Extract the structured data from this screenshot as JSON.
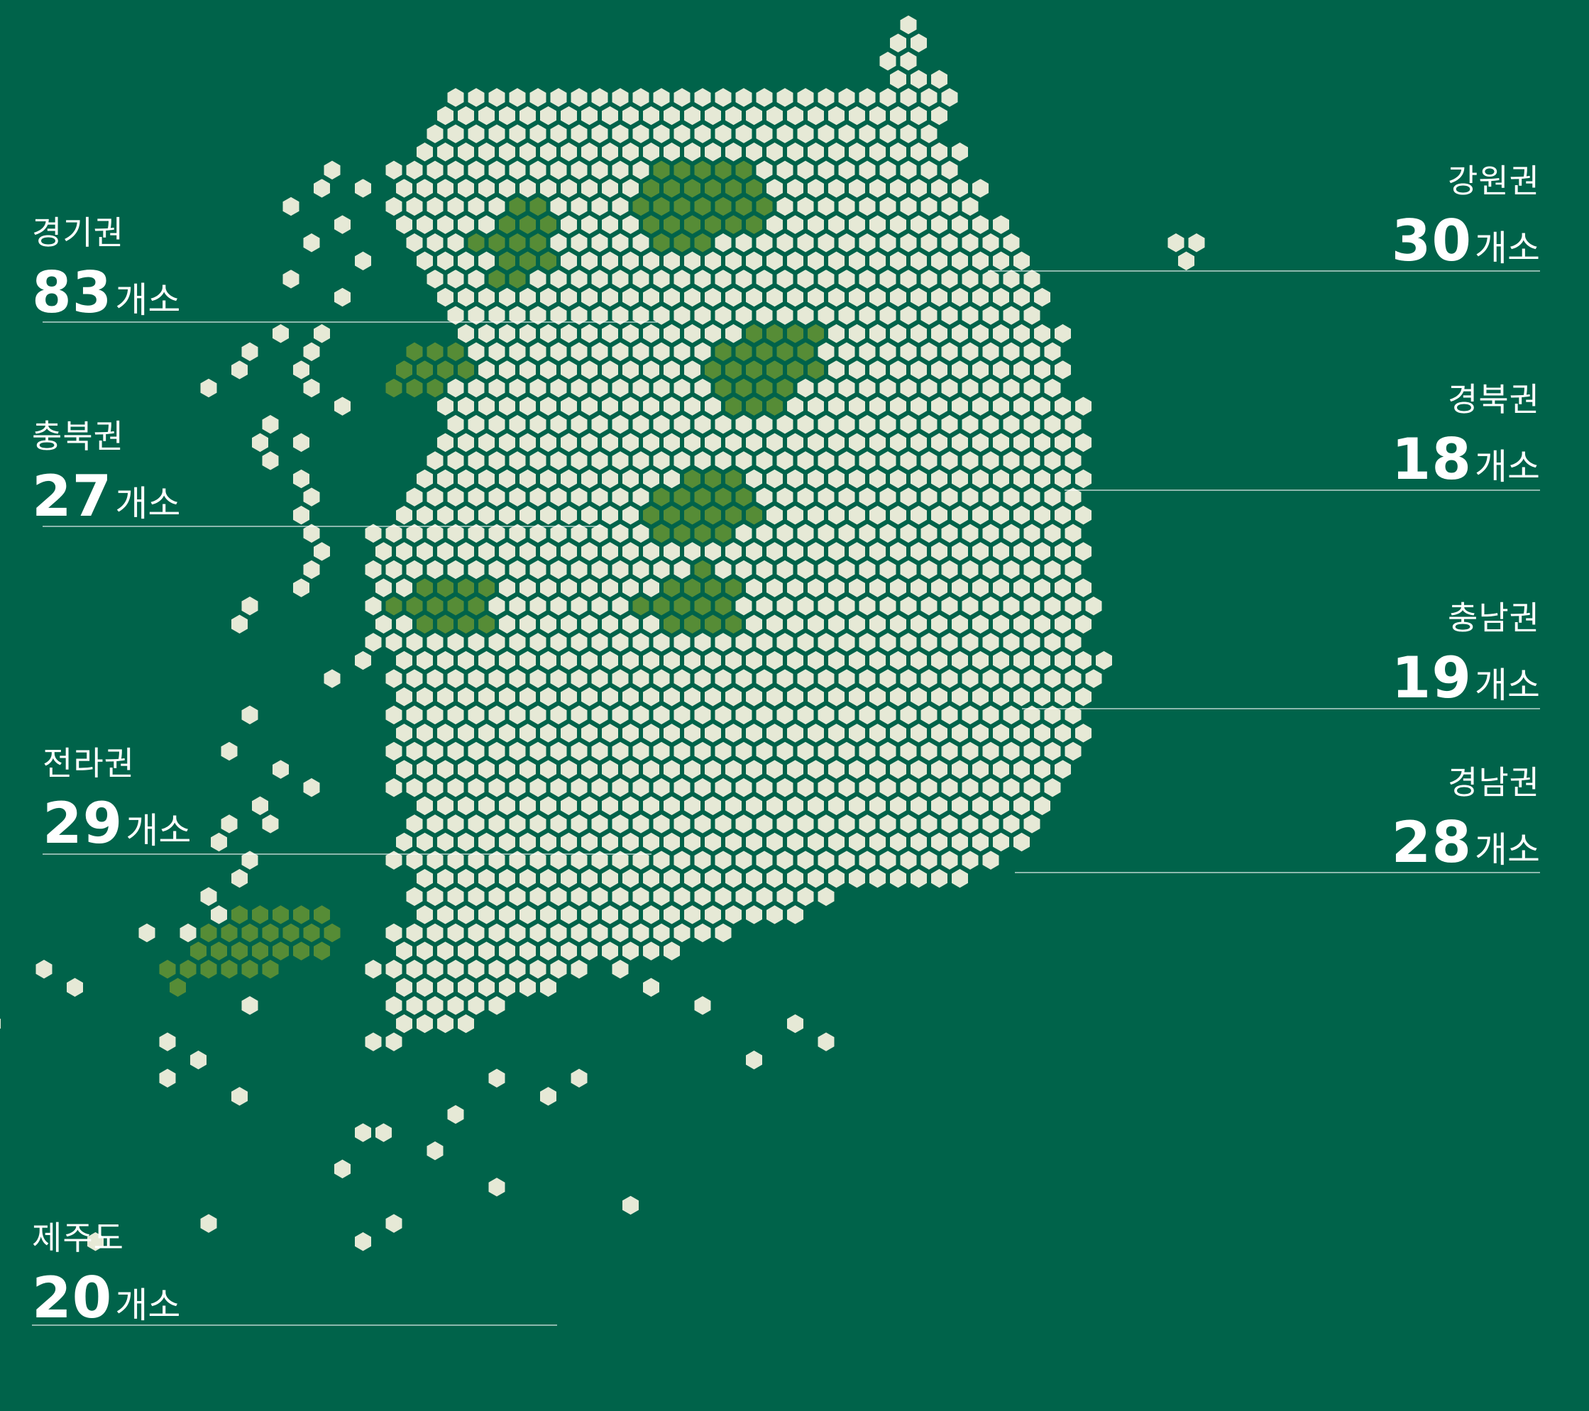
{
  "colors": {
    "background": "#00634a",
    "land": "#e6e9d6",
    "highlight": "#568c36",
    "hex_border": "#00634a",
    "label_text": "#ffffff"
  },
  "regions": [
    {
      "id": "gyeonggi",
      "name": "경기권",
      "count": "83",
      "unit": "개소",
      "side": "left"
    },
    {
      "id": "chungbuk",
      "name": "충북권",
      "count": "27",
      "unit": "개소",
      "side": "left"
    },
    {
      "id": "jeolla",
      "name": "전라권",
      "count": "29",
      "unit": "개소",
      "side": "left"
    },
    {
      "id": "jeju",
      "name": "제주도",
      "count": "20",
      "unit": "개소",
      "side": "left"
    },
    {
      "id": "gangwon",
      "name": "강원권",
      "count": "30",
      "unit": "개소",
      "side": "right"
    },
    {
      "id": "gyeongbuk",
      "name": "경북권",
      "count": "18",
      "unit": "개소",
      "side": "right"
    },
    {
      "id": "chungnam",
      "name": "충남권",
      "count": "19",
      "unit": "개소",
      "side": "right"
    },
    {
      "id": "gyeongnam",
      "name": "경남권",
      "count": "28",
      "unit": "개소",
      "side": "right"
    }
  ]
}
